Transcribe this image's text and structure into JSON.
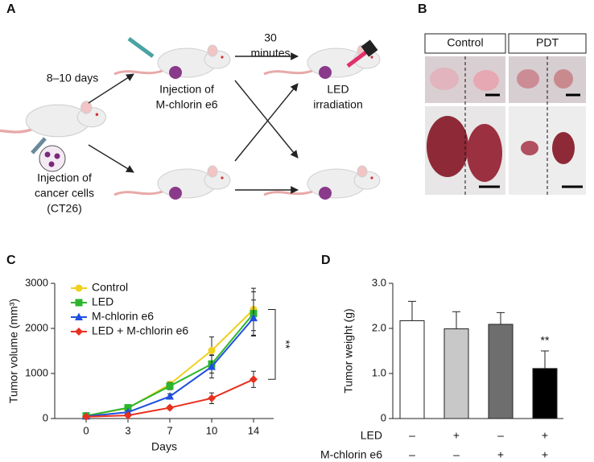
{
  "panels": [
    "A",
    "B",
    "C",
    "D"
  ],
  "schematic": [
    {
      "lines": [
        "8–10 days"
      ]
    },
    {
      "lines": [
        "Injection of",
        "M-chlorin e6"
      ]
    },
    {
      "lines": [
        "30",
        "minutes"
      ]
    },
    {
      "lines": [
        "LED",
        "irradiation"
      ]
    },
    {
      "lines": [
        "Injection of",
        "cancer cells",
        "(CT26)"
      ]
    }
  ],
  "photos": {
    "headers": [
      "Control",
      "PDT"
    ]
  },
  "chart_data": [
    {
      "type": "line",
      "xlabel": "Days",
      "ylabel": "Tumor volume (mm³)",
      "categories": [
        "0",
        "3",
        "7",
        "10",
        "14"
      ],
      "ylim": [
        0,
        3000
      ],
      "yticks": [
        0,
        1000,
        2000,
        3000
      ],
      "legend": "upper left",
      "annotation": "**",
      "series": [
        {
          "name": "Control",
          "color": "#f0d020",
          "marker": "circle",
          "values": [
            60,
            230,
            760,
            1510,
            2420
          ],
          "errors": [
            20,
            30,
            60,
            300,
            470
          ]
        },
        {
          "name": "LED",
          "color": "#2cb52c",
          "marker": "square",
          "values": [
            60,
            240,
            720,
            1210,
            2330
          ],
          "errors": [
            20,
            40,
            80,
            200,
            480
          ]
        },
        {
          "name": "M-chlorin e6",
          "color": "#1f4fe0",
          "marker": "triangle",
          "values": [
            50,
            140,
            490,
            1150,
            2230
          ],
          "errors": [
            20,
            30,
            60,
            250,
            400
          ]
        },
        {
          "name": "LED + M-chlorin e6",
          "color": "#e8301f",
          "marker": "diamond",
          "values": [
            40,
            70,
            240,
            450,
            870
          ],
          "errors": [
            10,
            20,
            40,
            120,
            180
          ]
        }
      ]
    },
    {
      "type": "bar",
      "ylabel": "Tumor weight (g)",
      "ylim": [
        0,
        3
      ],
      "yticks": [
        0,
        {
          "value": 1,
          "label": "1.0"
        },
        {
          "value": 2,
          "label": "2.0"
        },
        {
          "value": 3,
          "label": "3.0"
        }
      ],
      "values": [
        2.17,
        1.99,
        2.09,
        1.11
      ],
      "errors": [
        0.43,
        0.38,
        0.26,
        0.39
      ],
      "colors": [
        "#ffffff",
        "#c8c8c8",
        "#6e6e6e",
        "#000000"
      ],
      "annotation": "**",
      "condition_rows": [
        {
          "name": "LED",
          "values": [
            "–",
            "+",
            "–",
            "+"
          ]
        },
        {
          "name": "M-chlorin e6",
          "values": [
            "–",
            "–",
            "+",
            "+"
          ]
        }
      ]
    }
  ]
}
